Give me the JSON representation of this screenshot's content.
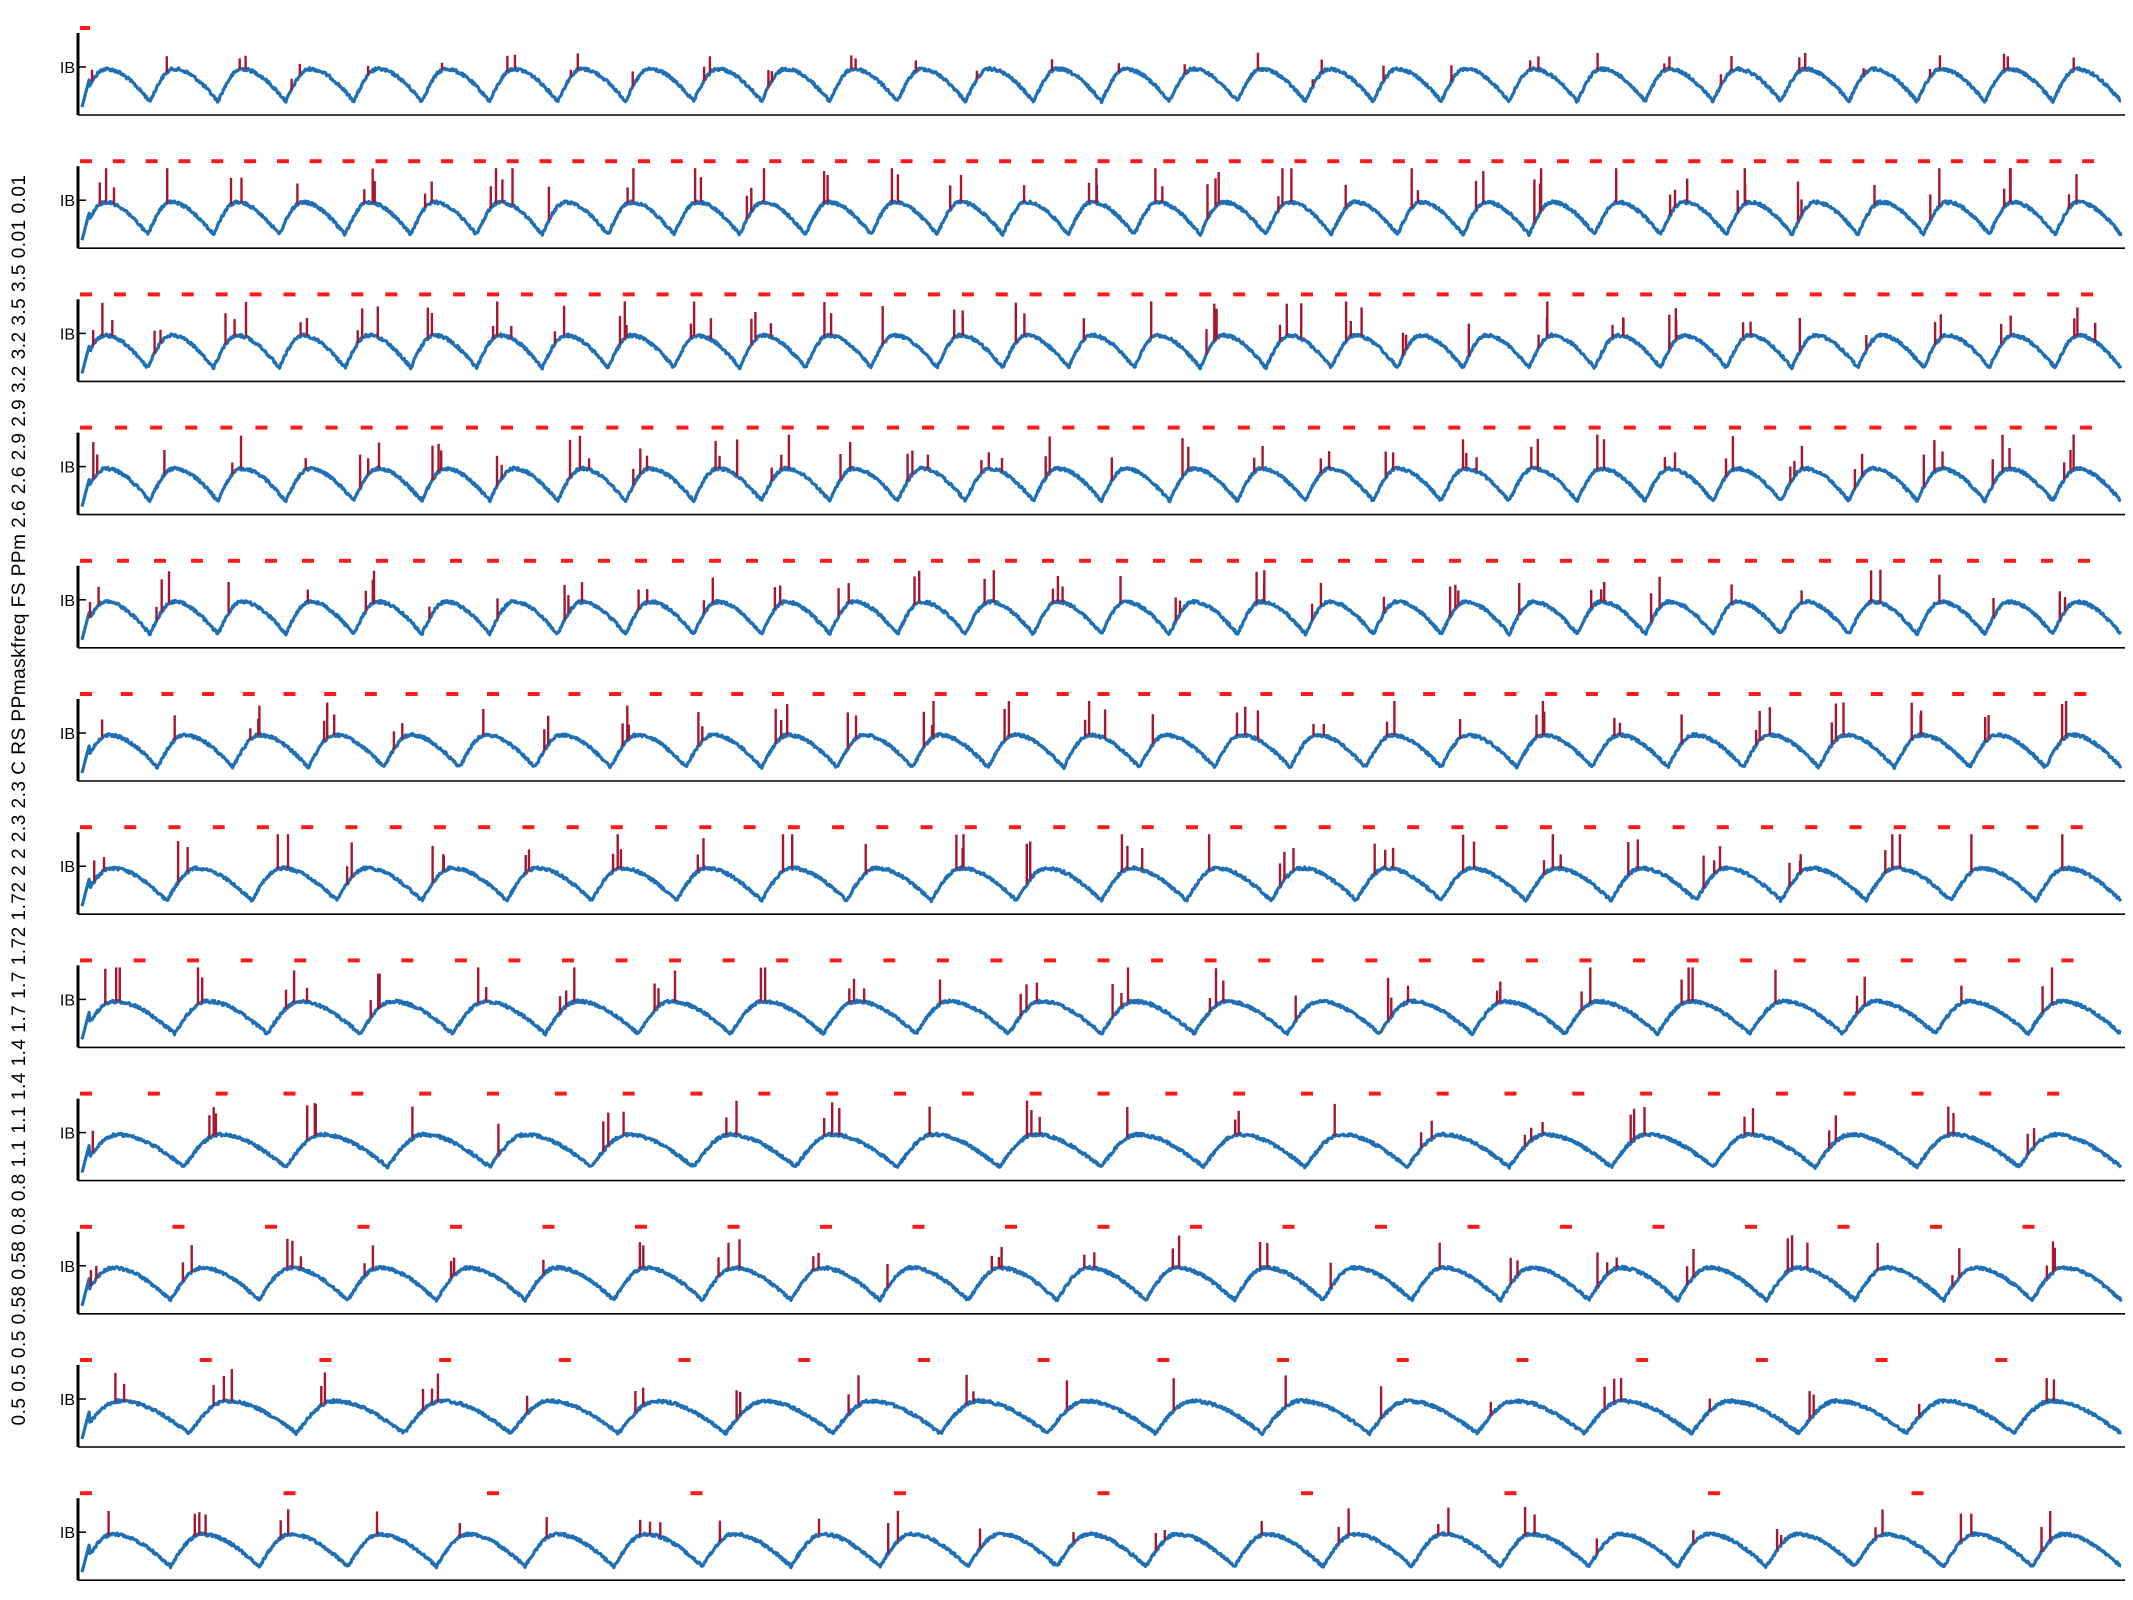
{
  "figure": {
    "ylabel_text": "0.5 0.5 0.5 0.58 0.58 0.8 0.8 1.1 1.1 1.4 1.4 1.7 1.7 1.72 1.72 2 2 2.3 2.3 C RS PPmaskfreq FS PPm 2.6 2.6 2.9 2.9 3.2 3.2 3.5 3.5 0.01 0.01",
    "colors": {
      "trace": "#1f6fb4",
      "spikes": "#a3182f",
      "mask": "#ff1a1a",
      "axis": "#000000"
    }
  },
  "chart_data": [
    {
      "type": "line",
      "row": 1,
      "tick_label": "IB",
      "cycles": 30,
      "mask_segments": 1,
      "spike_intensity": 0.28
    },
    {
      "type": "line",
      "row": 2,
      "tick_label": "IB",
      "cycles": 31,
      "mask_segments": 62,
      "spike_intensity": 0.85
    },
    {
      "type": "line",
      "row": 3,
      "tick_label": "IB",
      "cycles": 31,
      "mask_segments": 60,
      "spike_intensity": 0.75
    },
    {
      "type": "line",
      "row": 4,
      "tick_label": "IB",
      "cycles": 30,
      "mask_segments": 58,
      "spike_intensity": 0.72
    },
    {
      "type": "line",
      "row": 5,
      "tick_label": "IB",
      "cycles": 30,
      "mask_segments": 55,
      "spike_intensity": 0.65
    },
    {
      "type": "line",
      "row": 6,
      "tick_label": "IB",
      "cycles": 27,
      "mask_segments": 50,
      "spike_intensity": 0.7
    },
    {
      "type": "line",
      "row": 7,
      "tick_label": "IB",
      "cycles": 24,
      "mask_segments": 46,
      "spike_intensity": 0.8
    },
    {
      "type": "line",
      "row": 8,
      "tick_label": "IB",
      "cycles": 22,
      "mask_segments": 38,
      "spike_intensity": 0.85
    },
    {
      "type": "line",
      "row": 9,
      "tick_label": "IB",
      "cycles": 20,
      "mask_segments": 30,
      "spike_intensity": 0.7
    },
    {
      "type": "line",
      "row": 10,
      "tick_label": "IB",
      "cycles": 23,
      "mask_segments": 22,
      "spike_intensity": 0.65
    },
    {
      "type": "line",
      "row": 11,
      "tick_label": "IB",
      "cycles": 19,
      "mask_segments": 17,
      "spike_intensity": 0.6
    },
    {
      "type": "line",
      "row": 12,
      "tick_label": "IB",
      "cycles": 23,
      "mask_segments": 10,
      "spike_intensity": 0.55
    }
  ]
}
